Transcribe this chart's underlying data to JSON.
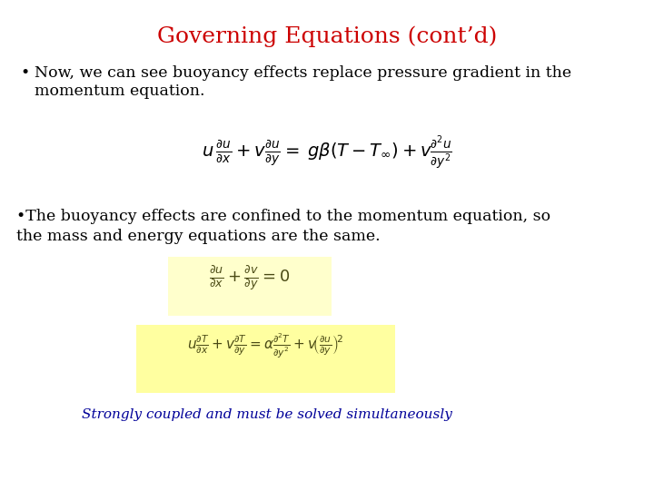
{
  "title": "Governing Equations (cont’d)",
  "title_color": "#cc0000",
  "title_fontsize": 18,
  "bg_color": "#ffffff",
  "bullet1_text": "Now, we can see buoyancy effects replace pressure gradient in the\nmomentum equation.",
  "bullet1_fontsize": 12.5,
  "eq1_fontsize": 14,
  "bullet2_line1": "•The buoyancy effects are confined to the momentum equation, so",
  "bullet2_line2": "the mass and energy equations are the same.",
  "bullet2_fontsize": 12.5,
  "eq2_fontsize": 13,
  "eq3_fontsize": 11,
  "highlight_color1": "#ffffcc",
  "highlight_color2": "#ffffcc",
  "caption": "Strongly coupled and must be solved simultaneously",
  "caption_color": "#000099",
  "caption_fontsize": 11,
  "text_color": "#000000"
}
